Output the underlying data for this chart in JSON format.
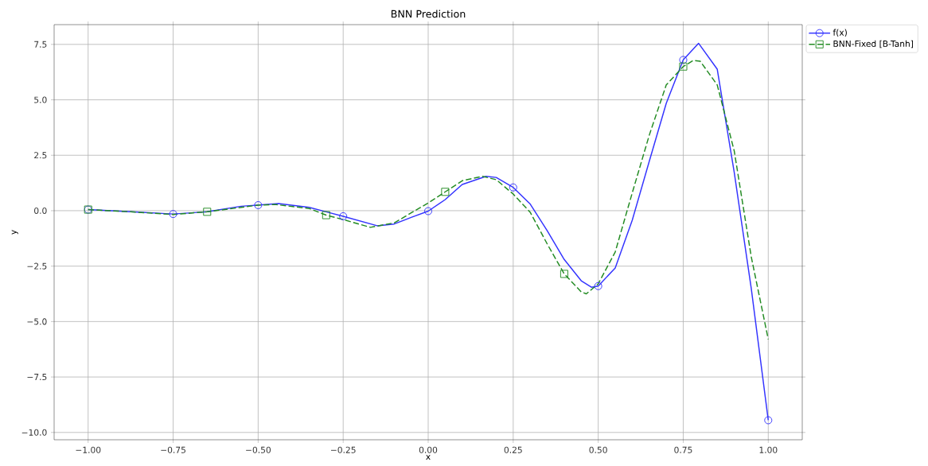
{
  "chart_data": {
    "type": "line",
    "title": "BNN Prediction",
    "xlabel": "x",
    "ylabel": "y",
    "xlim": [
      -1.1,
      1.1
    ],
    "ylim": [
      -10.33,
      8.39
    ],
    "xticks": [
      {
        "value": -1,
        "label": "−1.00"
      },
      {
        "value": -0.75,
        "label": "−0.75"
      },
      {
        "value": -0.5,
        "label": "−0.50"
      },
      {
        "value": -0.25,
        "label": "−0.25"
      },
      {
        "value": 0,
        "label": "0.00"
      },
      {
        "value": 0.25,
        "label": "0.25"
      },
      {
        "value": 0.5,
        "label": "0.50"
      },
      {
        "value": 0.75,
        "label": "0.75"
      },
      {
        "value": 1,
        "label": "1.00"
      }
    ],
    "yticks": [
      {
        "value": -10,
        "label": "−10.0"
      },
      {
        "value": -7.5,
        "label": "−7.5"
      },
      {
        "value": -5,
        "label": "−5.0"
      },
      {
        "value": -2.5,
        "label": "−2.5"
      },
      {
        "value": 0,
        "label": "0.0"
      },
      {
        "value": 2.5,
        "label": "2.5"
      },
      {
        "value": 5,
        "label": "5.0"
      },
      {
        "value": 7.5,
        "label": "7.5"
      }
    ],
    "grid": true,
    "legend": "top right",
    "series": [
      {
        "name": "f(x)",
        "color": "#3333ff",
        "line_style": "solid",
        "x": [
          -1,
          -0.875,
          -0.75,
          -0.65,
          -0.55,
          -0.44,
          -0.35,
          -0.3,
          -0.25,
          -0.15,
          -0.1,
          -0.05,
          0,
          0.05,
          0.1,
          0.17,
          0.2,
          0.25,
          0.3,
          0.35,
          0.4,
          0.45,
          0.48,
          0.5,
          0.55,
          0.6,
          0.65,
          0.7,
          0.75,
          0.795,
          0.85,
          0.9,
          0.95,
          1
        ],
        "values": [
          0.05,
          -0.05,
          -0.15,
          -0.05,
          0.2,
          0.32,
          0.15,
          -0.05,
          -0.25,
          -0.68,
          -0.6,
          -0.3,
          -0.02,
          0.5,
          1.18,
          1.55,
          1.5,
          1.05,
          0.3,
          -0.9,
          -2.2,
          -3.16,
          -3.45,
          -3.4,
          -2.58,
          -0.43,
          2.22,
          4.84,
          6.8,
          7.55,
          6.38,
          1.72,
          -3.5,
          -9.45
        ]
      },
      {
        "type": "scatter",
        "color": "#3333ff",
        "marker": "circle",
        "x": [
          -1,
          -0.75,
          -0.5,
          -0.25,
          0,
          0.25,
          0.5,
          0.75,
          1
        ],
        "values": [
          0.05,
          -0.15,
          0.25,
          -0.25,
          -0.02,
          1.05,
          -3.4,
          6.8,
          -9.45
        ]
      },
      {
        "name": "BNN-Fixed [B-Tanh]",
        "color": "#228b22",
        "line_style": "dashed",
        "x": [
          -1,
          -0.875,
          -0.75,
          -0.65,
          -0.5,
          -0.45,
          -0.35,
          -0.3,
          -0.25,
          -0.17,
          -0.1,
          -0.05,
          0,
          0.05,
          0.1,
          0.16,
          0.2,
          0.25,
          0.3,
          0.35,
          0.4,
          0.45,
          0.465,
          0.5,
          0.55,
          0.6,
          0.65,
          0.7,
          0.75,
          0.78,
          0.8,
          0.85,
          0.9,
          0.95,
          1
        ],
        "values": [
          0.05,
          -0.05,
          -0.17,
          -0.05,
          0.25,
          0.28,
          0.1,
          -0.2,
          -0.4,
          -0.75,
          -0.55,
          -0.1,
          0.35,
          0.85,
          1.35,
          1.55,
          1.4,
          0.75,
          -0.07,
          -1.5,
          -2.85,
          -3.66,
          -3.75,
          -3.3,
          -1.86,
          0.8,
          3.4,
          5.67,
          6.5,
          6.78,
          6.74,
          5.67,
          2.69,
          -2.08,
          -5.8
        ]
      },
      {
        "type": "scatter",
        "color": "#228b22",
        "marker": "square",
        "x": [
          -1,
          -0.65,
          -0.3,
          0.05,
          0.4,
          0.75
        ],
        "values": [
          0.05,
          -0.05,
          -0.2,
          0.85,
          -2.85,
          6.5
        ]
      }
    ]
  }
}
